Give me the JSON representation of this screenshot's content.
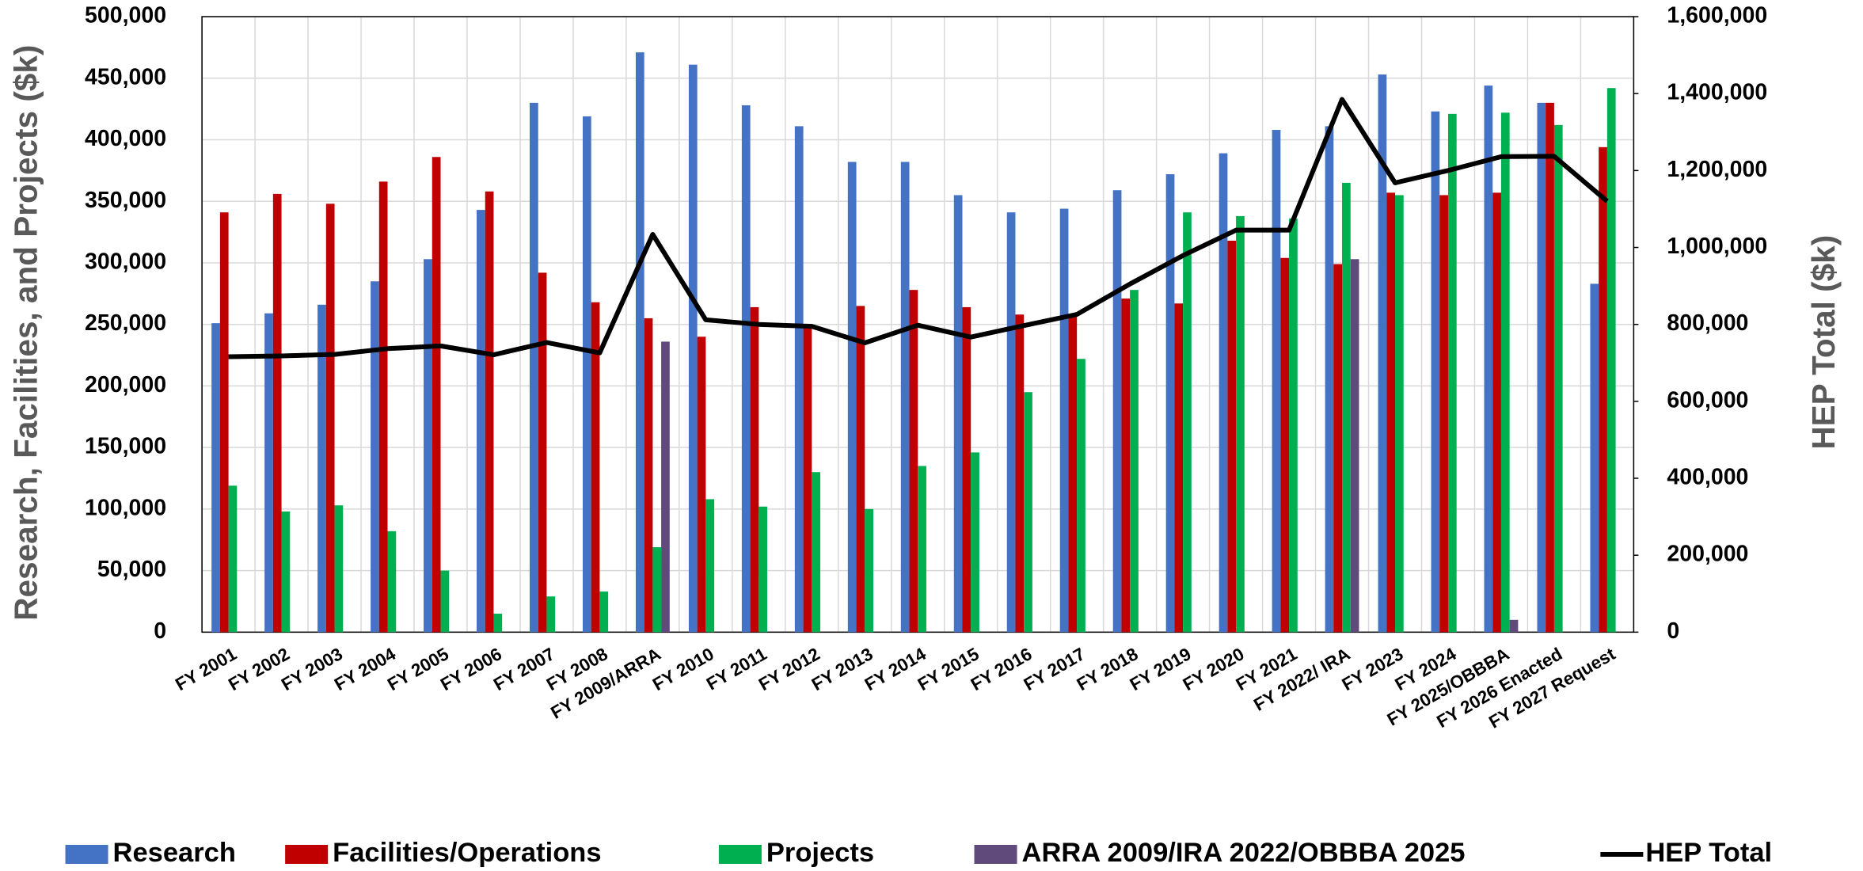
{
  "chart_data": {
    "type": "bar",
    "y_label": "Research, Facilities, and Projects ($k)",
    "y2_label": "HEP Total ($k)",
    "categories": [
      "FY 2001",
      "FY 2002",
      "FY 2003",
      "FY 2004",
      "FY 2005",
      "FY 2006",
      "FY 2007",
      "FY 2008",
      "FY 2009/ARRA",
      "FY 2010",
      "FY 2011",
      "FY 2012",
      "FY 2013",
      "FY 2014",
      "FY 2015",
      "FY 2016",
      "FY 2017",
      "FY 2018",
      "FY 2019",
      "FY 2020",
      "FY 2021",
      "FY 2022/ IRA",
      "FY 2023",
      "FY 2024",
      "FY 2025/OBBBA",
      "FY 2026 Enacted",
      "FY 2027 Request"
    ],
    "series": [
      {
        "name": "Research",
        "color": "#4472c4",
        "type": "bar",
        "values": [
          251000,
          259000,
          266000,
          285000,
          303000,
          343000,
          430000,
          419000,
          471000,
          461000,
          428000,
          411000,
          382000,
          382000,
          355000,
          341000,
          344000,
          359000,
          372000,
          389000,
          408000,
          411000,
          453000,
          423000,
          444000,
          430000,
          283000
        ]
      },
      {
        "name": "Facilities/Operations",
        "color": "#c00000",
        "type": "bar",
        "values": [
          341000,
          356000,
          348000,
          366000,
          386000,
          358000,
          292000,
          268000,
          255000,
          240000,
          264000,
          250000,
          265000,
          278000,
          264000,
          258000,
          257000,
          271000,
          267000,
          318000,
          304000,
          299000,
          357000,
          355000,
          357000,
          430000,
          394000
        ]
      },
      {
        "name": "Projects",
        "color": "#00b050",
        "type": "bar",
        "values": [
          119000,
          98000,
          103000,
          82000,
          50000,
          15000,
          29000,
          33000,
          69000,
          108000,
          102000,
          130000,
          100000,
          135000,
          146000,
          195000,
          222000,
          278000,
          341000,
          338000,
          336000,
          365000,
          355000,
          421000,
          422000,
          412000,
          442000
        ]
      },
      {
        "name": "ARRA 2009/IRA 2022/OBBBA 2025",
        "color": "#604a7b",
        "type": "bar",
        "values": [
          null,
          null,
          null,
          null,
          null,
          null,
          null,
          null,
          236000,
          null,
          null,
          null,
          null,
          null,
          null,
          null,
          null,
          null,
          null,
          null,
          null,
          303000,
          null,
          null,
          10000,
          null,
          null
        ]
      },
      {
        "name": "HEP Total",
        "color": "#000000",
        "type": "line",
        "axis": "y2",
        "values": [
          716000,
          718000,
          722000,
          737000,
          744000,
          721000,
          753000,
          726000,
          1034000,
          812000,
          800000,
          795000,
          752000,
          798000,
          767000,
          797000,
          826000,
          905000,
          979000,
          1045000,
          1045000,
          1385000,
          1168000,
          1200000,
          1236000,
          1237000,
          1120000
        ]
      }
    ],
    "ylim": [
      0,
      500000
    ],
    "yticks": [
      0,
      {
        "value": 50000,
        "label": "50,000"
      },
      {
        "value": 100000,
        "label": "100,000"
      },
      {
        "value": 150000,
        "label": "150,000"
      },
      {
        "value": 200000,
        "label": "200,000"
      },
      {
        "value": 250000,
        "label": "250,000"
      },
      {
        "value": 300000,
        "label": "300,000"
      },
      {
        "value": 350000,
        "label": "350,000"
      },
      {
        "value": 400000,
        "label": "400,000"
      },
      {
        "value": 450000,
        "label": "450,000"
      },
      {
        "value": 500000,
        "label": "500,000"
      }
    ],
    "y2lim": [
      0,
      1600000
    ],
    "y2ticks": [
      0,
      {
        "value": 200000,
        "label": "200,000"
      },
      {
        "value": 400000,
        "label": "400,000"
      },
      {
        "value": 600000,
        "label": "600,000"
      },
      {
        "value": 800000,
        "label": "800,000"
      },
      {
        "value": 1000000,
        "label": "1,000,000"
      },
      {
        "value": 1200000,
        "label": "1,200,000"
      },
      {
        "value": 1400000,
        "label": "1,400,000"
      },
      {
        "value": 1600000,
        "label": "1,600,000"
      }
    ],
    "grid": true,
    "legend": "bottom"
  }
}
